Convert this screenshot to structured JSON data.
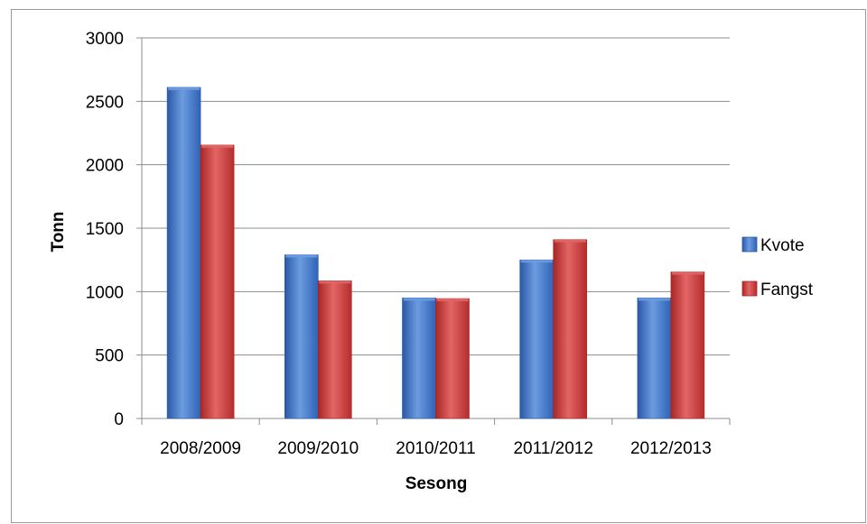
{
  "caption_fragment": "",
  "colors": {
    "kvote": "#3f74c6",
    "kvote_light": "#6c9be0",
    "kvote_dark": "#2a58a6",
    "fangst": "#cc3a3a",
    "fangst_light": "#e36565",
    "fangst_dark": "#a82626",
    "grid": "#8c8c8c"
  },
  "chart_data": {
    "type": "bar",
    "categories": [
      "2008/2009",
      "2009/2010",
      "2010/2011",
      "2011/2012",
      "2012/2013"
    ],
    "series": [
      {
        "name": "Kvote",
        "values": [
          2610,
          1290,
          950,
          1250,
          950
        ]
      },
      {
        "name": "Fangst",
        "values": [
          2155,
          1085,
          945,
          1410,
          1155
        ]
      }
    ],
    "xlabel": "Sesong",
    "ylabel": "Tonn",
    "ylim": [
      0,
      3000
    ],
    "yticks": [
      "0",
      "500",
      "1000",
      "1500",
      "2000",
      "2500",
      "3000"
    ],
    "grid": true,
    "legend": "right"
  }
}
